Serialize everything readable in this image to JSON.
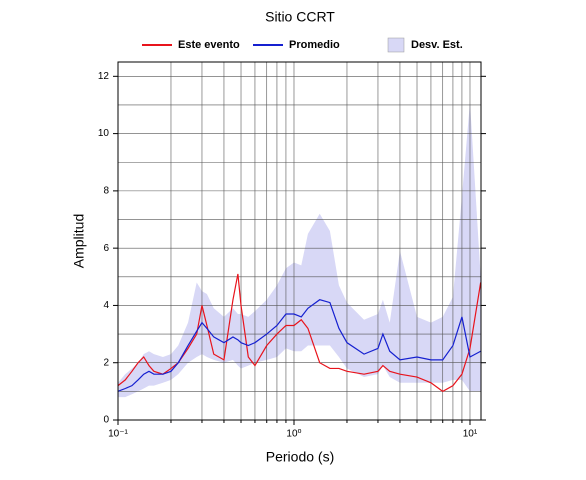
{
  "chart_data": {
    "type": "line",
    "title": "Sitio CCRT",
    "xlabel": "Periodo (s)",
    "ylabel": "Amplitud",
    "xscale": "log",
    "grid": true,
    "xlim": [
      0.1,
      11.55
    ],
    "ylim": [
      0,
      12.5
    ],
    "xticks": [
      {
        "value": 0.1,
        "label": "10⁻¹"
      },
      {
        "value": 1,
        "label": "10⁰"
      },
      {
        "value": 10,
        "label": "10¹"
      }
    ],
    "x_minor_ticks": [
      0.2,
      0.3,
      0.4,
      0.5,
      0.6,
      0.7,
      0.8,
      0.9,
      2,
      3,
      4,
      5,
      6,
      7,
      8,
      9
    ],
    "yticks": [
      0,
      2,
      4,
      6,
      8,
      10,
      12
    ],
    "y_minor_ticks": [
      1,
      3,
      5,
      7,
      9,
      11
    ],
    "x": [
      0.1,
      0.11,
      0.12,
      0.13,
      0.14,
      0.15,
      0.16,
      0.18,
      0.2,
      0.22,
      0.25,
      0.28,
      0.3,
      0.32,
      0.35,
      0.4,
      0.45,
      0.48,
      0.5,
      0.55,
      0.6,
      0.7,
      0.8,
      0.9,
      1.0,
      1.1,
      1.2,
      1.4,
      1.6,
      1.8,
      2,
      2.5,
      3,
      3.2,
      3.5,
      4,
      5,
      6,
      7,
      8,
      9,
      10,
      11.5
    ],
    "series": [
      {
        "name": "Este evento",
        "color": "#e8141c",
        "values": [
          1.2,
          1.4,
          1.7,
          2.0,
          2.2,
          1.9,
          1.7,
          1.6,
          1.8,
          2.0,
          2.5,
          3.0,
          4.0,
          3.3,
          2.3,
          2.1,
          4.2,
          5.1,
          4.0,
          2.2,
          1.9,
          2.6,
          3.0,
          3.3,
          3.3,
          3.5,
          3.2,
          2.0,
          1.8,
          1.8,
          1.7,
          1.6,
          1.7,
          1.9,
          1.7,
          1.6,
          1.5,
          1.3,
          1.0,
          1.2,
          1.6,
          2.5,
          4.8
        ]
      },
      {
        "name": "Promedio",
        "color": "#1520d0",
        "values": [
          1.0,
          1.1,
          1.2,
          1.4,
          1.6,
          1.7,
          1.6,
          1.6,
          1.7,
          2.0,
          2.6,
          3.1,
          3.4,
          3.2,
          2.9,
          2.7,
          2.9,
          2.8,
          2.7,
          2.6,
          2.7,
          3.0,
          3.3,
          3.7,
          3.7,
          3.6,
          3.9,
          4.2,
          4.1,
          3.2,
          2.7,
          2.3,
          2.5,
          3.0,
          2.4,
          2.1,
          2.2,
          2.1,
          2.1,
          2.6,
          3.6,
          2.2,
          2.4
        ]
      },
      {
        "name": "Desv. Est.",
        "color": "#d8d8f6",
        "lower": [
          0.8,
          0.8,
          0.9,
          1.0,
          1.1,
          1.2,
          1.2,
          1.3,
          1.4,
          1.6,
          2.0,
          2.2,
          2.3,
          2.2,
          2.1,
          2.0,
          2.1,
          1.9,
          1.8,
          1.9,
          2.0,
          2.1,
          2.2,
          2.5,
          2.4,
          2.4,
          2.6,
          2.6,
          2.6,
          2.2,
          1.8,
          1.5,
          1.6,
          1.9,
          1.5,
          1.3,
          1.3,
          1.3,
          1.3,
          1.4,
          1.4,
          1.0,
          1.0
        ],
        "upper": [
          1.3,
          1.6,
          1.8,
          2.0,
          2.3,
          2.4,
          2.3,
          2.2,
          2.3,
          2.6,
          3.4,
          4.8,
          4.5,
          4.4,
          3.9,
          3.6,
          3.9,
          3.7,
          3.7,
          3.6,
          3.8,
          4.2,
          4.7,
          5.3,
          5.5,
          5.4,
          6.5,
          7.2,
          6.6,
          4.7,
          4.1,
          3.5,
          3.7,
          4.2,
          3.4,
          5.9,
          3.6,
          3.4,
          3.6,
          4.3,
          7.8,
          11.1,
          5.0
        ]
      }
    ]
  }
}
